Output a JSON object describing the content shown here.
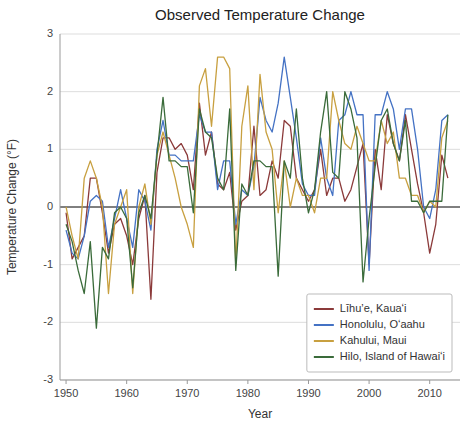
{
  "chart_data": {
    "type": "line",
    "title": "Observed Temperature Change",
    "xlabel": "Year",
    "ylabel": "Temperature Change (°F)",
    "x": [
      1950,
      1951,
      1952,
      1953,
      1954,
      1955,
      1956,
      1957,
      1958,
      1959,
      1960,
      1961,
      1962,
      1963,
      1964,
      1965,
      1966,
      1967,
      1968,
      1969,
      1970,
      1971,
      1972,
      1973,
      1974,
      1975,
      1976,
      1977,
      1978,
      1979,
      1980,
      1981,
      1982,
      1983,
      1984,
      1985,
      1986,
      1987,
      1988,
      1989,
      1990,
      1991,
      1992,
      1993,
      1994,
      1995,
      1996,
      1997,
      1998,
      1999,
      2000,
      2001,
      2002,
      2003,
      2004,
      2005,
      2006,
      2007,
      2008,
      2009,
      2010,
      2011,
      2012,
      2013
    ],
    "xlim": [
      1949,
      2015
    ],
    "ylim": [
      -3,
      3
    ],
    "xticks": [
      1950,
      1960,
      1970,
      1980,
      1990,
      2000,
      2010
    ],
    "yticks": [
      -3,
      -2,
      -1,
      0,
      1,
      2,
      3
    ],
    "grid": true,
    "legend": "lower right",
    "series": [
      {
        "name": "Līhuʼe, Kauaʻi",
        "color": "#8B3A3A",
        "values": [
          -0.1,
          -0.9,
          -0.7,
          -0.5,
          0.5,
          0.5,
          -0.1,
          -0.8,
          -0.3,
          -0.2,
          -0.5,
          -1.0,
          -0.2,
          0.2,
          -1.6,
          0.6,
          1.2,
          1.2,
          1.0,
          1.1,
          0.9,
          0.3,
          1.8,
          0.9,
          1.3,
          0.4,
          0.3,
          0.6,
          -0.4,
          0.1,
          0.2,
          1.4,
          0.2,
          0.3,
          0.8,
          0.5,
          1.5,
          1.4,
          0.5,
          0.3,
          0.1,
          0.3,
          1.0,
          0.2,
          0.5,
          0.5,
          0.1,
          0.3,
          0.7,
          1.1,
          -1.0,
          1.0,
          0.3,
          1.6,
          1.1,
          0.8,
          1.6,
          1.0,
          0.4,
          -0.1,
          -0.8,
          -0.3,
          0.9,
          0.5
        ]
      },
      {
        "name": "Honolulu, Oʻaahu",
        "color": "#4472C4",
        "values": [
          -0.4,
          -0.8,
          -0.9,
          -0.5,
          0.1,
          0.2,
          0.1,
          -0.7,
          -0.2,
          0.3,
          -0.2,
          -0.7,
          0.3,
          0.1,
          -0.4,
          1.0,
          1.5,
          0.9,
          0.9,
          0.8,
          0.8,
          0.8,
          1.6,
          1.3,
          1.3,
          0.3,
          0.8,
          0.8,
          -0.3,
          0.3,
          0.2,
          0.7,
          1.9,
          1.5,
          1.3,
          1.8,
          2.6,
          1.9,
          1.2,
          0.4,
          0.2,
          0.2,
          1.2,
          0.5,
          0.2,
          1.5,
          1.6,
          2.0,
          1.6,
          1.6,
          -1.1,
          1.6,
          1.6,
          2.0,
          1.7,
          1.0,
          1.7,
          1.7,
          1.0,
          0.0,
          -0.2,
          0.3,
          1.5,
          1.6
        ]
      },
      {
        "name": "Kahului, Maui",
        "color": "#C8A040",
        "values": [
          0.0,
          -0.5,
          -0.9,
          0.5,
          0.8,
          0.5,
          0.0,
          -1.5,
          -0.3,
          0.0,
          0.3,
          -1.5,
          0.0,
          0.4,
          -0.3,
          0.9,
          1.3,
          0.9,
          0.5,
          0.0,
          -0.3,
          -0.7,
          2.1,
          2.4,
          1.4,
          2.6,
          2.6,
          2.4,
          -1.0,
          1.4,
          2.1,
          0.3,
          2.3,
          1.3,
          1.0,
          -0.1,
          0.8,
          0.0,
          0.5,
          0.2,
          0.2,
          -0.1,
          0.5,
          0.5,
          2.0,
          1.5,
          1.1,
          1.0,
          1.4,
          1.1,
          0.8,
          0.8,
          1.5,
          1.1,
          1.3,
          0.5,
          0.5,
          0.2,
          0.2,
          -0.1,
          0.1,
          0.0,
          1.2,
          1.5
        ]
      },
      {
        "name": "Hilo, Island of Hawaiʻi",
        "color": "#3A6B3A",
        "values": [
          -0.3,
          -0.6,
          -1.1,
          -1.5,
          -0.6,
          -2.1,
          -0.7,
          -0.9,
          -0.1,
          0.0,
          -0.2,
          -1.4,
          -0.1,
          0.2,
          -0.2,
          0.9,
          1.9,
          0.8,
          0.8,
          0.7,
          0.7,
          -0.1,
          1.7,
          1.3,
          1.2,
          0.5,
          0.3,
          1.7,
          -1.1,
          0.4,
          0.2,
          0.8,
          0.8,
          0.7,
          0.7,
          -1.2,
          0.8,
          0.5,
          1.7,
          0.5,
          -0.1,
          0.3,
          1.3,
          2.0,
          0.6,
          0.5,
          2.0,
          1.7,
          1.2,
          -1.3,
          -0.2,
          0.7,
          1.5,
          1.7,
          1.1,
          0.8,
          1.5,
          0.1,
          0.1,
          -0.1,
          0.1,
          0.1,
          0.1,
          1.6
        ]
      }
    ]
  }
}
